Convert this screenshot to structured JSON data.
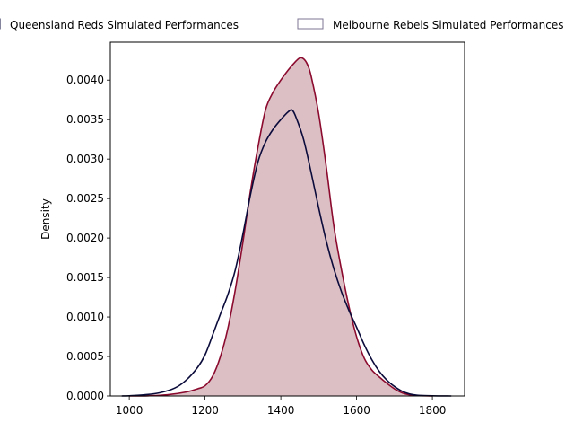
{
  "chart_data": {
    "type": "area",
    "title": "",
    "xlabel": "",
    "ylabel": "Density",
    "xlim": [
      950,
      1885
    ],
    "ylim": [
      0,
      0.00448
    ],
    "xticks": [
      1000,
      1200,
      1400,
      1600,
      1800
    ],
    "xtick_labels": [
      "1000",
      "1200",
      "1400",
      "1600",
      "1800"
    ],
    "yticks": [
      0,
      0.0005,
      0.001,
      0.0015,
      0.002,
      0.0025,
      0.003,
      0.0035,
      0.004
    ],
    "ytick_labels": [
      "0.0000",
      "0.0005",
      "0.0010",
      "0.0015",
      "0.0020",
      "0.0025",
      "0.0030",
      "0.0035",
      "0.0040"
    ],
    "grid": false,
    "legend": {
      "placement": "top",
      "columns": 2
    },
    "series": [
      {
        "name": "Queensland Reds Simulated Performances",
        "kind": "line",
        "color": "#0b0b3b",
        "x": [
          980,
          1000,
          1040,
          1080,
          1120,
          1150,
          1180,
          1200,
          1220,
          1240,
          1260,
          1280,
          1300,
          1320,
          1340,
          1360,
          1380,
          1400,
          1420,
          1430,
          1440,
          1460,
          1480,
          1500,
          1520,
          1540,
          1560,
          1580,
          1600,
          1620,
          1640,
          1660,
          1680,
          1700,
          1720,
          1740,
          1760,
          1800,
          1850
        ],
        "y": [
          0.0,
          2.5e-06,
          1.5e-05,
          4e-05,
          0.0001,
          0.0002,
          0.00036,
          0.00052,
          0.00077,
          0.00103,
          0.00128,
          0.0016,
          0.00205,
          0.00255,
          0.00297,
          0.00322,
          0.00338,
          0.0035,
          0.0036,
          0.00362,
          0.00353,
          0.00325,
          0.00283,
          0.00238,
          0.00196,
          0.00161,
          0.00132,
          0.00108,
          0.00087,
          0.00065,
          0.00046,
          0.00031,
          0.0002,
          0.00012,
          6e-05,
          2.5e-05,
          1e-05,
          2e-06,
          0.0
        ]
      },
      {
        "name": "Melbourne Rebels Simulated Performances",
        "kind": "area",
        "color": "#8b0a2e",
        "fill": "#dcbfc5",
        "x": [
          1000,
          1050,
          1100,
          1150,
          1180,
          1200,
          1220,
          1240,
          1260,
          1280,
          1300,
          1320,
          1340,
          1360,
          1380,
          1400,
          1420,
          1440,
          1450,
          1460,
          1470,
          1480,
          1500,
          1520,
          1540,
          1560,
          1580,
          1600,
          1620,
          1640,
          1660,
          1680,
          1700,
          1720,
          1740,
          1760,
          1800
        ],
        "y": [
          0.0,
          2.5e-06,
          1.5e-05,
          5e-05,
          9e-05,
          0.00013,
          0.00025,
          0.00049,
          0.00085,
          0.00135,
          0.00195,
          0.0026,
          0.00316,
          0.00363,
          0.00385,
          0.004,
          0.00413,
          0.00424,
          0.00428,
          0.00427,
          0.0042,
          0.00405,
          0.00357,
          0.0029,
          0.00215,
          0.0016,
          0.00113,
          0.00075,
          0.00048,
          0.00033,
          0.00024,
          0.00016,
          9e-05,
          4e-05,
          1.5e-05,
          5e-06,
          0.0
        ]
      }
    ]
  }
}
